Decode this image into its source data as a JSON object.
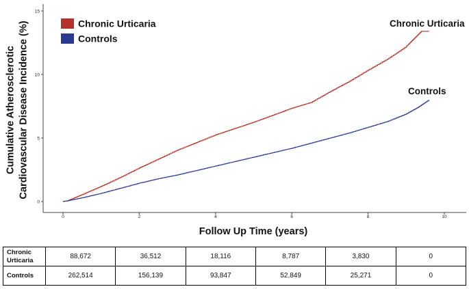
{
  "chart_data": {
    "type": "line",
    "title": "",
    "xlabel": "Follow Up Time (years)",
    "ylabel_lines": [
      "Cumulative Atherosclerotic",
      "Cardiovascular Disease Incidence (%)"
    ],
    "xlim": [
      0,
      10.4
    ],
    "ylim": [
      0,
      15.6
    ],
    "x_ticks": [
      0,
      2,
      4,
      6,
      8,
      10
    ],
    "y_ticks": [
      0,
      5,
      10,
      15
    ],
    "grid": false,
    "legend_position": "top-left",
    "series": [
      {
        "name": "Chronic Urticaria",
        "color": "#b5322a",
        "end_label": "Chronic Urticaria",
        "x": [
          0,
          0.1,
          0.5,
          1,
          1.5,
          2,
          2.5,
          3,
          3.5,
          4,
          4.5,
          5,
          5.5,
          6,
          6.5,
          7,
          7.5,
          8,
          8.5,
          9,
          9.2,
          9.4,
          9.6
        ],
        "y": [
          0,
          0.05,
          0.55,
          1.2,
          1.9,
          2.65,
          3.35,
          4.05,
          4.65,
          5.25,
          5.75,
          6.25,
          6.8,
          7.35,
          7.8,
          8.65,
          9.45,
          10.35,
          11.2,
          12.2,
          12.8,
          13.4,
          13.4
        ]
      },
      {
        "name": "Controls",
        "color": "#2a3a8f",
        "end_label": "Controls",
        "x": [
          0,
          0.1,
          0.5,
          1,
          1.5,
          2,
          2.5,
          3,
          3.5,
          4,
          4.5,
          5,
          5.5,
          6,
          6.5,
          7,
          7.5,
          8,
          8.5,
          9,
          9.3,
          9.6
        ],
        "y": [
          0,
          0.05,
          0.3,
          0.65,
          1.05,
          1.45,
          1.8,
          2.1,
          2.45,
          2.8,
          3.15,
          3.5,
          3.85,
          4.2,
          4.6,
          5.0,
          5.4,
          5.85,
          6.3,
          6.9,
          7.4,
          8.0
        ]
      }
    ]
  },
  "risk_table": {
    "rows": [
      {
        "label_lines": [
          "Chronic",
          "Urticaria"
        ],
        "values": [
          "88,672",
          "36,512",
          "18,116",
          "8,787",
          "3,830",
          "0"
        ]
      },
      {
        "label_lines": [
          "Controls"
        ],
        "values": [
          "262,514",
          "156,139",
          "93,847",
          "52,849",
          "25,271",
          "0"
        ]
      }
    ]
  }
}
